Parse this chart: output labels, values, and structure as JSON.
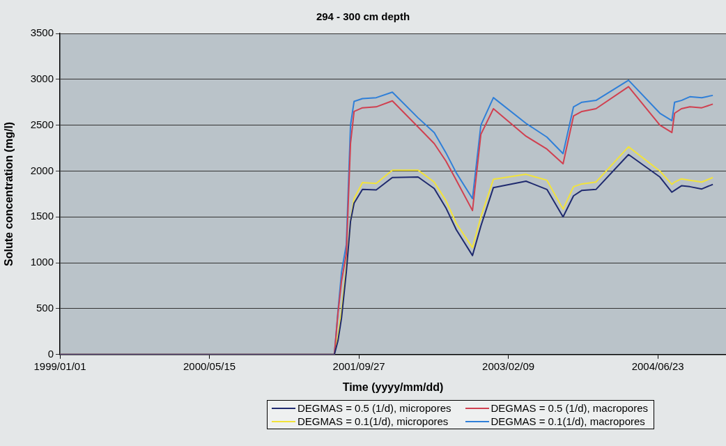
{
  "chart_data": {
    "type": "line",
    "title": "294 - 300 cm depth",
    "xlabel": "Time (yyyy/mm/dd)",
    "ylabel": "Solute concentration (mg/l)",
    "x": [
      "1999-01-01",
      "2001-07-07",
      "2001-07-19",
      "2001-07-31",
      "2001-08-16",
      "2001-08-30",
      "2001-09-11",
      "2001-10-09",
      "2001-11-24",
      "2002-01-17",
      "2002-04-13",
      "2002-06-06",
      "2002-07-15",
      "2002-08-19",
      "2002-10-12",
      "2002-11-09",
      "2002-12-21",
      "2003-04-09",
      "2003-06-18",
      "2003-08-11",
      "2003-09-15",
      "2003-10-13",
      "2003-11-29",
      "2004-03-17",
      "2004-06-30",
      "2004-08-09",
      "2004-08-18",
      "2004-09-10",
      "2004-10-08",
      "2004-11-17",
      "2004-12-24"
    ],
    "series": [
      {
        "name": "DEGMAS = 0.5 (1/d), micropores",
        "color": "#1f2a6e",
        "values": [
          0,
          0,
          150,
          400,
          900,
          1450,
          1650,
          1800,
          1795,
          1930,
          1935,
          1810,
          1600,
          1360,
          1080,
          1400,
          1820,
          1890,
          1800,
          1500,
          1730,
          1790,
          1800,
          2180,
          1935,
          1770,
          1790,
          1840,
          1830,
          1805,
          1855
        ]
      },
      {
        "name": "DEGMAS = 0.5 (1/d), macropores",
        "color": "#d04050",
        "values": [
          0,
          0,
          450,
          800,
          1100,
          2300,
          2650,
          2690,
          2700,
          2765,
          2480,
          2300,
          2110,
          1900,
          1570,
          2400,
          2680,
          2380,
          2240,
          2080,
          2600,
          2650,
          2680,
          2920,
          2500,
          2420,
          2630,
          2680,
          2700,
          2690,
          2730
        ]
      },
      {
        "name": "DEGMAS = 0.1(1/d), micropores",
        "color": "#f2e33a",
        "values": [
          0,
          0,
          200,
          470,
          950,
          1450,
          1700,
          1875,
          1865,
          2010,
          2010,
          1880,
          1680,
          1430,
          1165,
          1500,
          1910,
          1965,
          1900,
          1585,
          1830,
          1860,
          1880,
          2265,
          2000,
          1855,
          1880,
          1915,
          1900,
          1880,
          1930
        ]
      },
      {
        "name": "DEGMAS = 0.1(1/d), macropores",
        "color": "#2f7fd8",
        "values": [
          0,
          0,
          470,
          900,
          1200,
          2500,
          2760,
          2790,
          2800,
          2860,
          2580,
          2420,
          2200,
          1980,
          1700,
          2500,
          2800,
          2520,
          2370,
          2190,
          2700,
          2750,
          2770,
          2990,
          2630,
          2550,
          2750,
          2770,
          2810,
          2800,
          2825
        ]
      }
    ],
    "xlim": [
      "1999-01-01",
      "2005-02-06"
    ],
    "xticks": [
      {
        "value": "1999-01-01",
        "label": "1999/01/01"
      },
      {
        "value": "2000-05-15",
        "label": "2000/05/15"
      },
      {
        "value": "2001-09-27",
        "label": "2001/09/27"
      },
      {
        "value": "2003-02-09",
        "label": "2003/02/09"
      },
      {
        "value": "2004-06-23",
        "label": "2004/06/23"
      }
    ],
    "ylim": [
      0,
      3500
    ],
    "yticks": [
      0,
      500,
      1000,
      1500,
      2000,
      2500,
      3000,
      3500
    ],
    "grid": "y",
    "legend": "bottom",
    "marker": "none",
    "line_style": "solid"
  }
}
